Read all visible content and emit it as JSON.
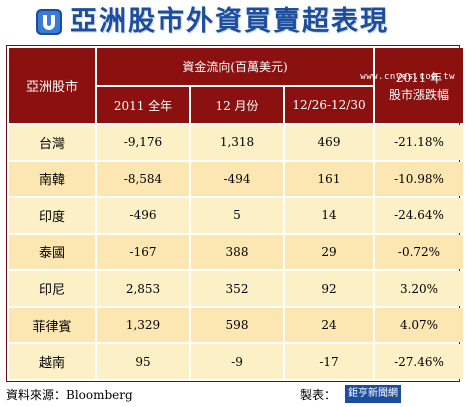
{
  "title": "亞洲股市外資買賣超表現",
  "watermark": "www.cnyes.com.tw",
  "header": {
    "market": "亞洲股市",
    "flow": "資金流向(百萬美元)",
    "change_line1": "2011 年",
    "change_line2": "股市漲跌幅",
    "col_2011": "2011 全年",
    "col_dec": "12 月份",
    "col_week": "12/26-12/30"
  },
  "rows": [
    {
      "market": "台灣",
      "y2011": "-9,176",
      "dec": "1,318",
      "week": "469",
      "change": "-21.18%"
    },
    {
      "market": "南韓",
      "y2011": "-8,584",
      "dec": "-494",
      "week": "161",
      "change": "-10.98%"
    },
    {
      "market": "印度",
      "y2011": "-496",
      "dec": "5",
      "week": "14",
      "change": "-24.64%"
    },
    {
      "market": "泰國",
      "y2011": "-167",
      "dec": "388",
      "week": "29",
      "change": "-0.72%"
    },
    {
      "market": "印尼",
      "y2011": "2,853",
      "dec": "352",
      "week": "92",
      "change": "3.20%"
    },
    {
      "market": "菲律賓",
      "y2011": "1,329",
      "dec": "598",
      "week": "24",
      "change": "4.07%"
    },
    {
      "market": "越南",
      "y2011": "95",
      "dec": "-9",
      "week": "-17",
      "change": "-27.46%"
    }
  ],
  "footer": {
    "source": "資料來源：Bloomberg",
    "maker": "製表：",
    "maker_logo": "鉅亨新聞網"
  },
  "colors": {
    "header_bg": "#8b1010",
    "row_light": "#fbf0c6",
    "row_dark": "#fce7b3",
    "title": "#1d4e9e"
  },
  "icons": {
    "logo": "cnyes-logo-icon"
  }
}
